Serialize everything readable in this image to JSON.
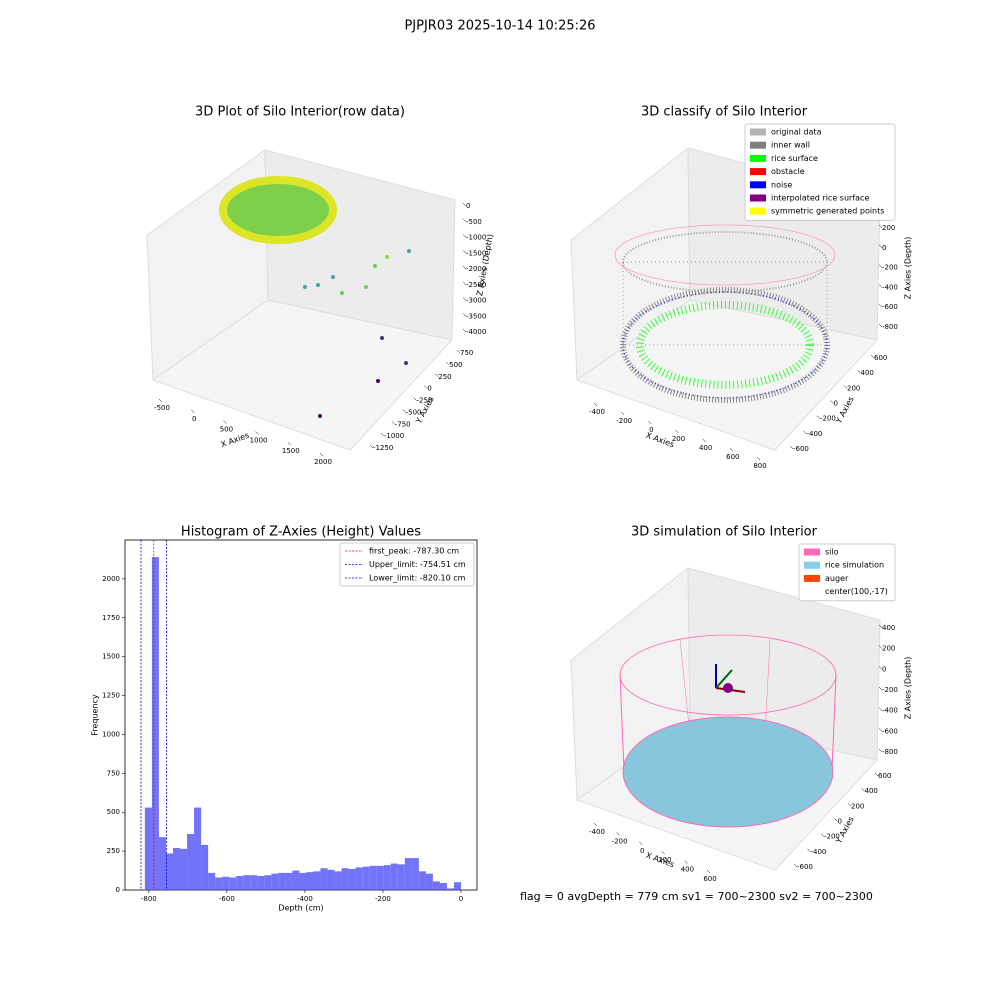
{
  "suptitle": "PJPJR03 2025-10-14 10:25:26",
  "chart_data": [
    {
      "type": "scatter3d",
      "title": "3D Plot of Silo Interior(row data)",
      "xlabel": "X Axies",
      "ylabel": "Y Axies",
      "zlabel": "Z Axies (Depth)",
      "xticks": [
        -500,
        0,
        500,
        1000,
        1500,
        2000
      ],
      "yticks": [
        750,
        500,
        250,
        0,
        -250,
        -500,
        -750,
        -1000,
        -1250
      ],
      "zticks": [
        0,
        -500,
        -1000,
        -1500,
        -2000,
        -2500,
        -3000,
        -3500,
        -4000
      ]
    },
    {
      "type": "scatter3d",
      "title": "3D classify of Silo Interior",
      "xlabel": "X Axies",
      "ylabel": "Y Axies",
      "zlabel": "Z Axies (Depth)",
      "xticks": [
        -400,
        -200,
        0,
        200,
        400,
        600,
        800
      ],
      "yticks": [
        600,
        400,
        200,
        0,
        -200,
        -400,
        -600
      ],
      "zticks": [
        200,
        0,
        -200,
        -400,
        -600,
        -800
      ],
      "legend": [
        {
          "name": "original data",
          "color": "#b3b3b3"
        },
        {
          "name": "inner wall",
          "color": "#808080"
        },
        {
          "name": "rice surface",
          "color": "#00ff00"
        },
        {
          "name": "obstacle",
          "color": "#ff0000"
        },
        {
          "name": "noise",
          "color": "#0000ff"
        },
        {
          "name": "interpolated rice surface",
          "color": "#800080"
        },
        {
          "name": "symmetric generated points",
          "color": "#ffff00"
        }
      ]
    },
    {
      "type": "histogram",
      "title": "Histogram of Z-Axies (Height) Values",
      "xlabel": "Depth (cm)",
      "ylabel": "Frequency",
      "color": "#5050f5",
      "bins": [
        -810,
        -792,
        -774,
        -756,
        -738,
        -720,
        -702,
        -684,
        -666,
        -648,
        -630,
        -612,
        -594,
        -576,
        -558,
        -540,
        -522,
        -504,
        -486,
        -468,
        -450,
        -432,
        -414,
        -396,
        -378,
        -360,
        -342,
        -324,
        -306,
        -288,
        -270,
        -252,
        -234,
        -216,
        -198,
        -180,
        -162,
        -144,
        -126,
        -108,
        -90,
        -72,
        -54,
        -36,
        -18,
        0
      ],
      "values": [
        530,
        2140,
        340,
        235,
        270,
        265,
        360,
        530,
        290,
        110,
        80,
        85,
        80,
        90,
        95,
        95,
        90,
        95,
        105,
        110,
        110,
        125,
        110,
        115,
        120,
        140,
        130,
        120,
        140,
        135,
        145,
        150,
        155,
        155,
        160,
        170,
        165,
        205,
        205,
        120,
        105,
        55,
        45,
        10,
        50
      ],
      "xlim": [
        -861,
        41
      ],
      "ylim": [
        0,
        2250
      ],
      "xticks": [
        -800,
        -600,
        -400,
        -200,
        0
      ],
      "yticks": [
        0,
        250,
        500,
        750,
        1000,
        1250,
        1500,
        1750,
        2000
      ],
      "vlines": [
        {
          "name": "first_peak: -787.30 cm",
          "value": -787.3,
          "color": "#ff0000"
        },
        {
          "name": "Upper_limit: -754.51 cm",
          "value": -754.51,
          "color": "#0000cc"
        },
        {
          "name": "Lower_limit: -820.10 cm",
          "value": -820.1,
          "color": "#0000cc"
        }
      ]
    },
    {
      "type": "scatter3d",
      "title": "3D simulation of Silo Interior",
      "xlabel": "X Axies",
      "ylabel": "Y Axies",
      "zlabel": "Z Axies (Depth)",
      "xticks": [
        -400,
        -200,
        0,
        200,
        400,
        600
      ],
      "yticks": [
        600,
        400,
        200,
        0,
        -200,
        -400,
        -600
      ],
      "zticks": [
        400,
        200,
        0,
        -200,
        -400,
        -600,
        -800
      ],
      "legend": [
        {
          "name": "silo",
          "color": "#ff69b4"
        },
        {
          "name": "rice simulation",
          "color": "#87ceeb"
        },
        {
          "name": "auger",
          "color": "#ff4500"
        },
        {
          "name": "center(100,-17)",
          "color": "none"
        }
      ],
      "annotation": "flag = 0     avgDepth = 779 cm  sv1 = 700~2300  sv2 = 700~2300"
    }
  ]
}
